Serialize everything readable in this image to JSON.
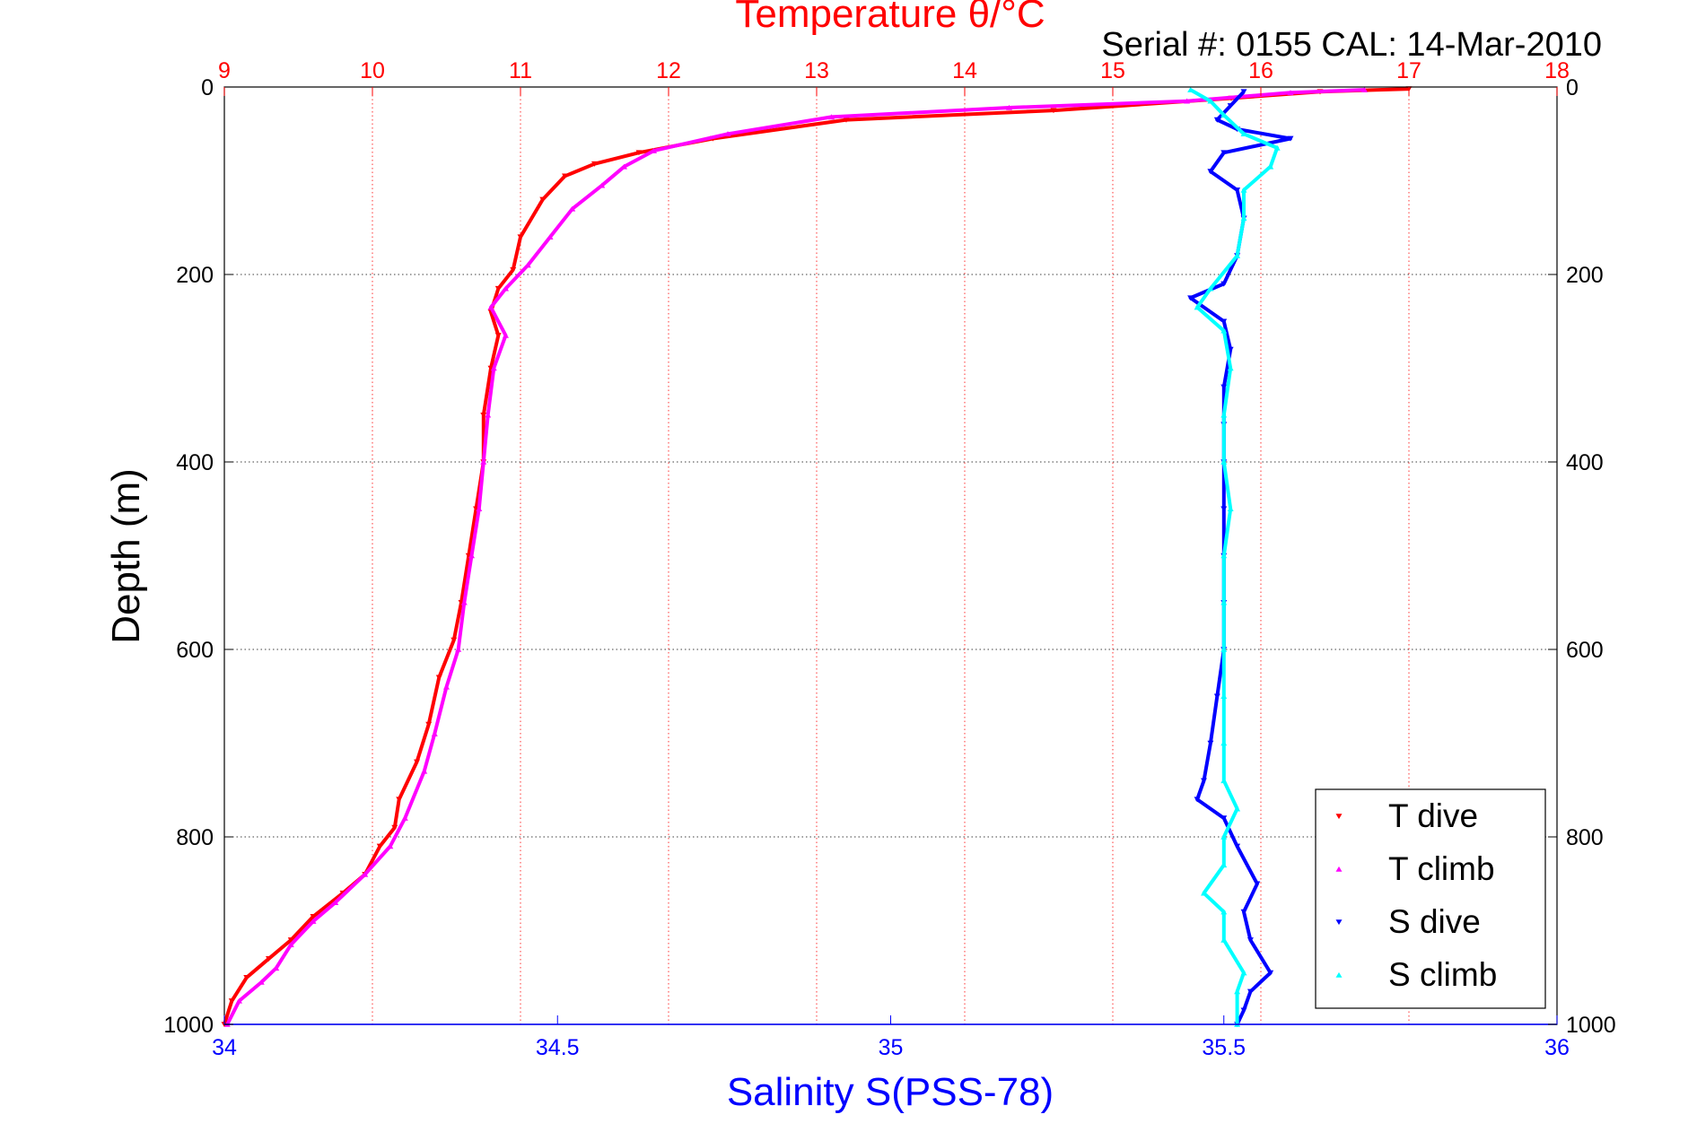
{
  "chart_data": {
    "type": "scatter",
    "title": "Temperature θ/°C",
    "subtitle": "Serial #: 0155  CAL: 14-Mar-2010",
    "ylabel": "Depth (m)",
    "xlabel_bottom": "Salinity S(PSS-78)",
    "y_ticks": [
      "0",
      "200",
      "400",
      "600",
      "800",
      "1000"
    ],
    "ylim": [
      0,
      1000
    ],
    "y_reversed": true,
    "x_top": {
      "label": "Temperature θ/°C",
      "ticks": [
        "9",
        "10",
        "11",
        "12",
        "13",
        "14",
        "15",
        "16",
        "17",
        "18"
      ],
      "lim": [
        9,
        18
      ],
      "color": "#ff0000",
      "grid": true
    },
    "x_bottom": {
      "label": "Salinity S(PSS-78)",
      "ticks": [
        "34",
        "34.5",
        "35",
        "35.5",
        "36"
      ],
      "lim": [
        34,
        36
      ],
      "color": "#0000ff",
      "grid": false
    },
    "grid": true,
    "legend_position": "bottom-right",
    "legend": [
      {
        "label": "T dive",
        "color": "#ff0000",
        "marker": "triangle-down"
      },
      {
        "label": "T climb",
        "color": "#ff00ff",
        "marker": "triangle-up"
      },
      {
        "label": "S dive",
        "color": "#0000ff",
        "marker": "triangle-down"
      },
      {
        "label": "S climb",
        "color": "#00ffff",
        "marker": "triangle-up"
      }
    ],
    "series": [
      {
        "name": "T dive",
        "axis": "temperature",
        "color": "#ff0000",
        "points": [
          [
            17.0,
            2
          ],
          [
            16.4,
            5
          ],
          [
            15.8,
            12
          ],
          [
            14.6,
            25
          ],
          [
            13.2,
            35
          ],
          [
            12.3,
            55
          ],
          [
            11.8,
            70
          ],
          [
            11.5,
            82
          ],
          [
            11.3,
            95
          ],
          [
            11.15,
            120
          ],
          [
            11.0,
            160
          ],
          [
            10.95,
            195
          ],
          [
            10.85,
            215
          ],
          [
            10.8,
            240
          ],
          [
            10.85,
            265
          ],
          [
            10.8,
            300
          ],
          [
            10.75,
            350
          ],
          [
            10.75,
            400
          ],
          [
            10.7,
            450
          ],
          [
            10.65,
            500
          ],
          [
            10.6,
            550
          ],
          [
            10.55,
            590
          ],
          [
            10.45,
            630
          ],
          [
            10.38,
            680
          ],
          [
            10.3,
            720
          ],
          [
            10.18,
            760
          ],
          [
            10.15,
            790
          ],
          [
            10.05,
            810
          ],
          [
            9.95,
            840
          ],
          [
            9.8,
            860
          ],
          [
            9.6,
            885
          ],
          [
            9.45,
            910
          ],
          [
            9.3,
            930
          ],
          [
            9.15,
            950
          ],
          [
            9.05,
            975
          ],
          [
            9.0,
            1000
          ]
        ]
      },
      {
        "name": "T climb",
        "axis": "temperature",
        "color": "#ff00ff",
        "points": [
          [
            16.7,
            3
          ],
          [
            16.2,
            6
          ],
          [
            15.5,
            15
          ],
          [
            14.3,
            22
          ],
          [
            13.1,
            32
          ],
          [
            12.4,
            50
          ],
          [
            11.9,
            68
          ],
          [
            11.7,
            85
          ],
          [
            11.55,
            105
          ],
          [
            11.35,
            130
          ],
          [
            11.2,
            160
          ],
          [
            11.05,
            190
          ],
          [
            10.9,
            215
          ],
          [
            10.8,
            235
          ],
          [
            10.9,
            265
          ],
          [
            10.82,
            300
          ],
          [
            10.78,
            350
          ],
          [
            10.75,
            400
          ],
          [
            10.72,
            450
          ],
          [
            10.67,
            500
          ],
          [
            10.62,
            550
          ],
          [
            10.58,
            600
          ],
          [
            10.5,
            640
          ],
          [
            10.42,
            690
          ],
          [
            10.35,
            730
          ],
          [
            10.22,
            780
          ],
          [
            10.12,
            810
          ],
          [
            9.95,
            840
          ],
          [
            9.75,
            870
          ],
          [
            9.6,
            890
          ],
          [
            9.45,
            915
          ],
          [
            9.35,
            940
          ],
          [
            9.25,
            955
          ],
          [
            9.1,
            975
          ],
          [
            9.02,
            1000
          ]
        ]
      },
      {
        "name": "S dive",
        "axis": "salinity",
        "color": "#0000ff",
        "points": [
          [
            35.53,
            5
          ],
          [
            35.51,
            20
          ],
          [
            35.49,
            35
          ],
          [
            35.52,
            45
          ],
          [
            35.6,
            55
          ],
          [
            35.5,
            70
          ],
          [
            35.48,
            90
          ],
          [
            35.52,
            110
          ],
          [
            35.53,
            140
          ],
          [
            35.52,
            180
          ],
          [
            35.5,
            210
          ],
          [
            35.45,
            225
          ],
          [
            35.5,
            250
          ],
          [
            35.51,
            280
          ],
          [
            35.5,
            320
          ],
          [
            35.5,
            360
          ],
          [
            35.5,
            400
          ],
          [
            35.5,
            450
          ],
          [
            35.5,
            500
          ],
          [
            35.5,
            550
          ],
          [
            35.5,
            600
          ],
          [
            35.49,
            650
          ],
          [
            35.48,
            700
          ],
          [
            35.47,
            740
          ],
          [
            35.46,
            760
          ],
          [
            35.5,
            780
          ],
          [
            35.52,
            810
          ],
          [
            35.55,
            850
          ],
          [
            35.53,
            880
          ],
          [
            35.54,
            910
          ],
          [
            35.57,
            945
          ],
          [
            35.54,
            965
          ],
          [
            35.53,
            985
          ],
          [
            35.52,
            1000
          ]
        ]
      },
      {
        "name": "S climb",
        "axis": "salinity",
        "color": "#00ffff",
        "points": [
          [
            35.45,
            3
          ],
          [
            35.48,
            15
          ],
          [
            35.5,
            30
          ],
          [
            35.53,
            50
          ],
          [
            35.58,
            65
          ],
          [
            35.57,
            85
          ],
          [
            35.53,
            110
          ],
          [
            35.53,
            140
          ],
          [
            35.52,
            180
          ],
          [
            35.48,
            215
          ],
          [
            35.46,
            235
          ],
          [
            35.5,
            260
          ],
          [
            35.51,
            300
          ],
          [
            35.5,
            350
          ],
          [
            35.5,
            400
          ],
          [
            35.51,
            450
          ],
          [
            35.5,
            500
          ],
          [
            35.5,
            550
          ],
          [
            35.5,
            600
          ],
          [
            35.5,
            650
          ],
          [
            35.5,
            700
          ],
          [
            35.5,
            740
          ],
          [
            35.52,
            770
          ],
          [
            35.5,
            800
          ],
          [
            35.5,
            830
          ],
          [
            35.47,
            860
          ],
          [
            35.5,
            880
          ],
          [
            35.5,
            910
          ],
          [
            35.53,
            945
          ],
          [
            35.52,
            965
          ],
          [
            35.52,
            1000
          ]
        ]
      }
    ]
  }
}
